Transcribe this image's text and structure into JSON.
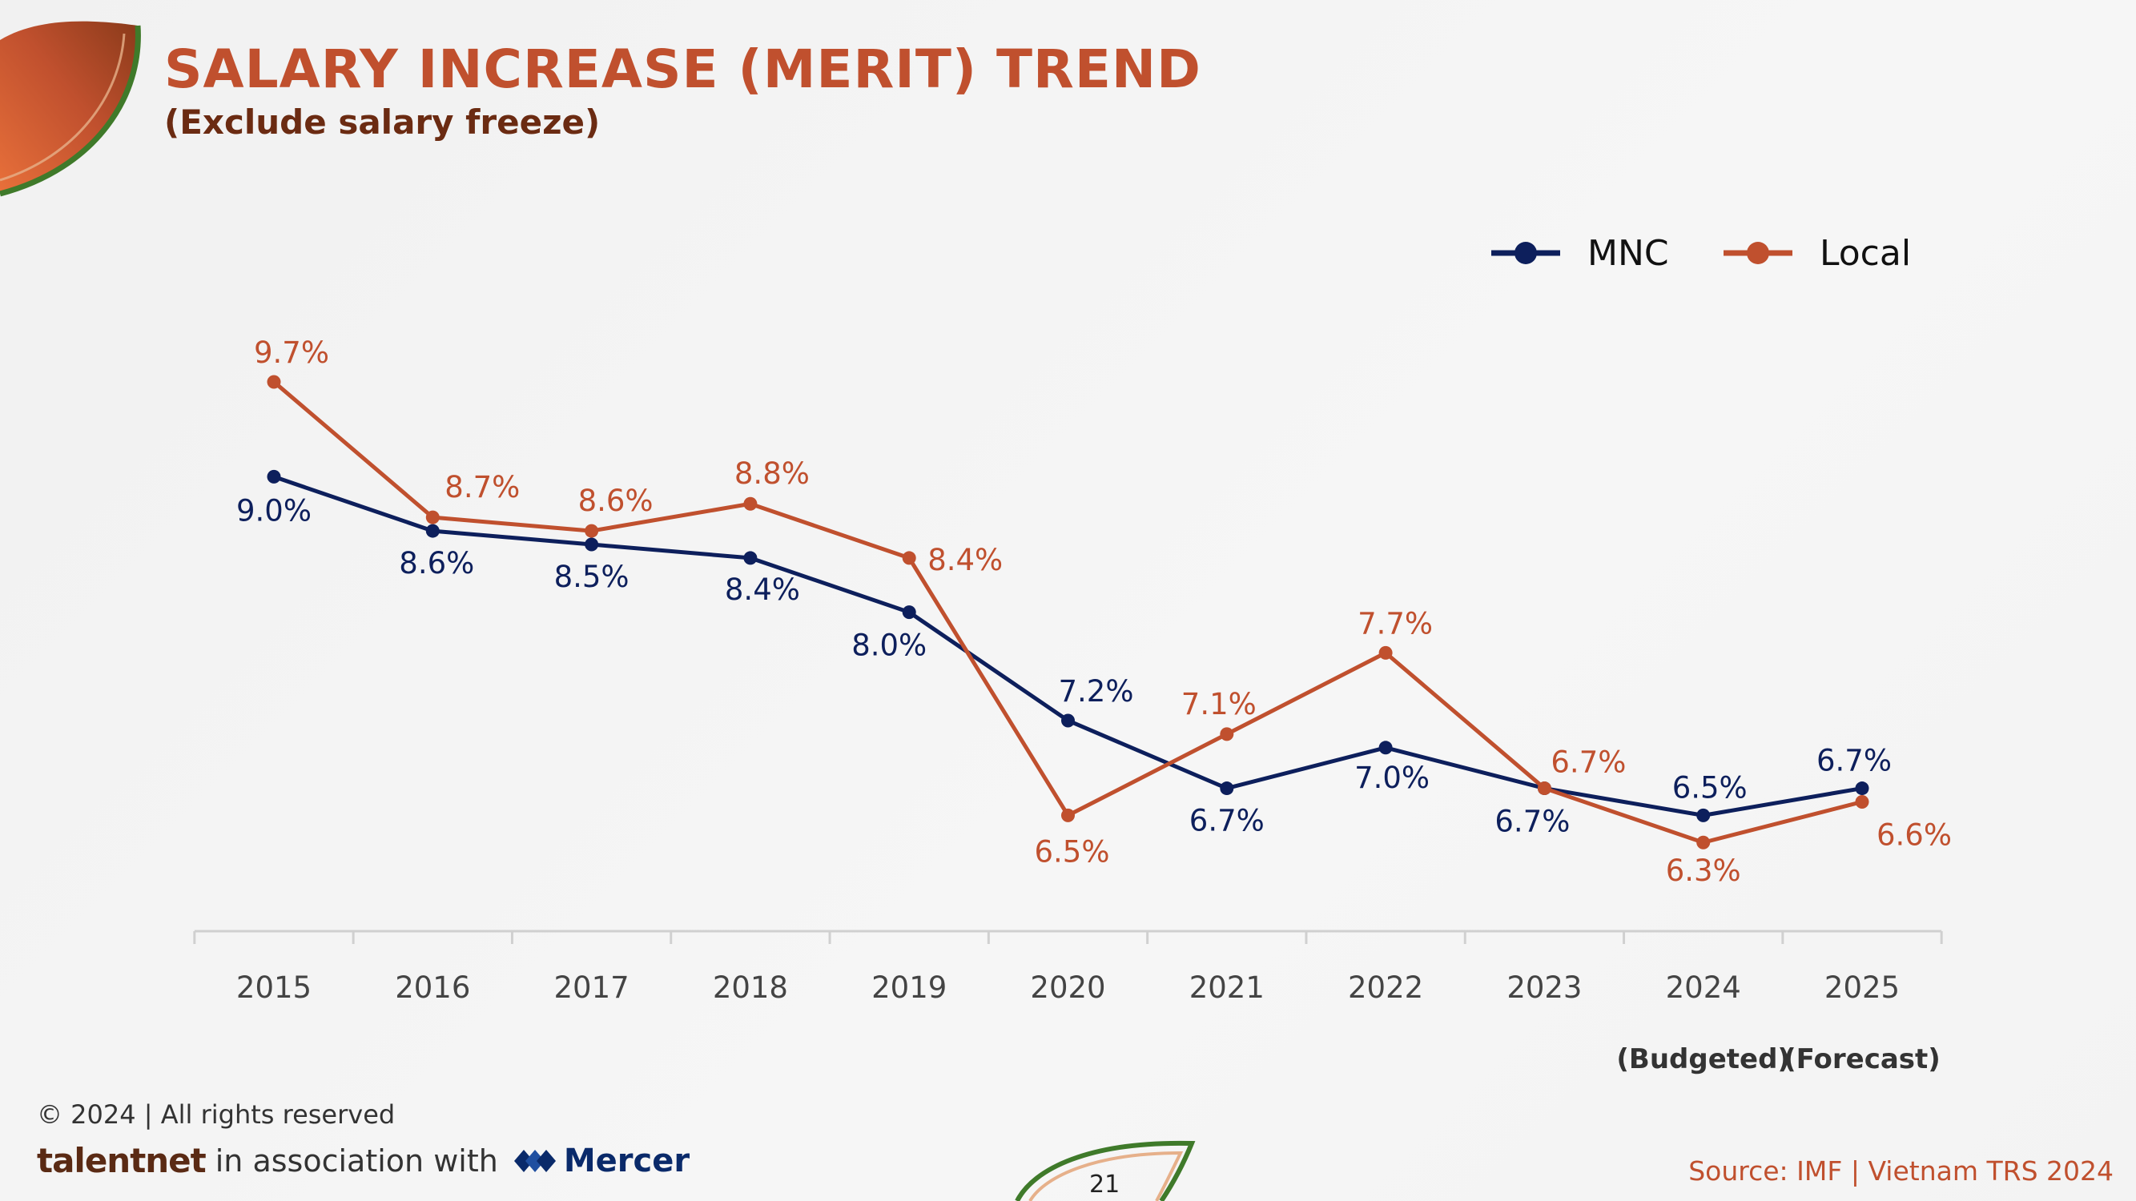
{
  "header": {
    "title": "SALARY INCREASE (MERIT) TREND",
    "subtitle": "(Exclude salary freeze)"
  },
  "colors": {
    "title": "#c0502e",
    "subtitle": "#6b2b12",
    "mnc": "#0d1f5c",
    "local": "#c0502e",
    "axis": "#d0d0d0",
    "source": "#c0502e"
  },
  "chart_data": {
    "type": "line",
    "title": "SALARY INCREASE (MERIT) TREND",
    "subtitle": "(Exclude salary freeze)",
    "categories": [
      "2015",
      "2016",
      "2017",
      "2018",
      "2019",
      "2020",
      "2021",
      "2022",
      "2023",
      "2024",
      "2025"
    ],
    "category_notes": [
      "",
      "",
      "",
      "",
      "",
      "",
      "",
      "",
      "",
      "(Budgeted)",
      "(Forecast)"
    ],
    "series": [
      {
        "name": "MNC",
        "color": "#0d1f5c",
        "values": [
          9.0,
          8.6,
          8.5,
          8.4,
          8.0,
          7.2,
          6.7,
          7.0,
          6.7,
          6.5,
          6.7
        ],
        "labels": [
          "9.0%",
          "8.6%",
          "8.5%",
          "8.4%",
          "8.0%",
          "7.2%",
          "6.7%",
          "7.0%",
          "6.7%",
          "6.5%",
          "6.7%"
        ]
      },
      {
        "name": "Local",
        "color": "#c0502e",
        "values": [
          9.7,
          8.7,
          8.6,
          8.8,
          8.4,
          6.5,
          7.1,
          7.7,
          6.7,
          6.3,
          6.6
        ],
        "labels": [
          "9.7%",
          "8.7%",
          "8.6%",
          "8.8%",
          "8.4%",
          "6.5%",
          "7.1%",
          "7.7%",
          "6.7%",
          "6.3%",
          "6.6%"
        ]
      }
    ],
    "xlabel": "",
    "ylabel": "",
    "y_axis_visible": false,
    "grid": false,
    "legend_position": "top-right"
  },
  "footer": {
    "copyright": "© 2024 | All rights reserved",
    "brand": "talentnet",
    "association": "in association with",
    "partner": "Mercer",
    "source": "Source: IMF | Vietnam TRS 2024",
    "page_number": "21"
  }
}
